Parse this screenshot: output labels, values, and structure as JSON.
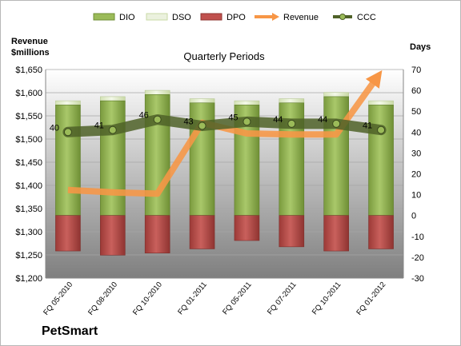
{
  "chart_data": {
    "type": "bar",
    "title": "Quarterly Periods",
    "company": "PetSmart",
    "left_axis_label": [
      "Revenue",
      "$millions"
    ],
    "right_axis_label": "Days",
    "left_ylim": [
      1200,
      1650
    ],
    "right_ylim": [
      -30,
      70
    ],
    "left_ticks": [
      "$1,200",
      "$1,250",
      "$1,300",
      "$1,350",
      "$1,400",
      "$1,450",
      "$1,500",
      "$1,550",
      "$1,600",
      "$1,650"
    ],
    "right_ticks": [
      "-30",
      "-20",
      "-10",
      "0",
      "10",
      "20",
      "30",
      "40",
      "50",
      "60",
      "70"
    ],
    "categories": [
      "FQ 05-2010",
      "FQ 08-2010",
      "FQ 10-2010",
      "FQ 01-2011",
      "FQ 05-2011",
      "FQ 07-2011",
      "FQ 10-2011",
      "FQ 01-2012"
    ],
    "series": [
      {
        "name": "DIO",
        "axis": "days",
        "values": [
          53,
          55,
          58,
          54,
          53,
          54,
          57,
          53
        ],
        "color": "#9bbb59"
      },
      {
        "name": "DSO",
        "axis": "days",
        "values": [
          2,
          2,
          2,
          2,
          2,
          2,
          2,
          2
        ],
        "color": "#ebf1de"
      },
      {
        "name": "DPO",
        "axis": "days",
        "values": [
          -17,
          -19,
          -18,
          -16,
          -12,
          -15,
          -17,
          -16
        ],
        "color": "#c0504d"
      },
      {
        "name": "Revenue",
        "axis": "revenue",
        "values": [
          1390,
          1385,
          1382,
          1535,
          1512,
          1510,
          1510,
          1645
        ],
        "color": "#f79646"
      },
      {
        "name": "CCC",
        "axis": "days",
        "values": [
          40,
          41,
          46,
          43,
          45,
          44,
          44,
          41
        ],
        "labels": [
          "40",
          "41",
          "46",
          "43",
          "45",
          "44",
          "44",
          "41"
        ],
        "color": "#4f6228"
      }
    ],
    "legend_position": "top"
  },
  "colors": {
    "plot_top": "#ffffff",
    "plot_bottom": "#7f7f7f",
    "dio": "#9bbb59",
    "dso": "#ebf1de",
    "dpo": "#c0504d",
    "revenue": "#f79646",
    "ccc": "#4f6228"
  }
}
